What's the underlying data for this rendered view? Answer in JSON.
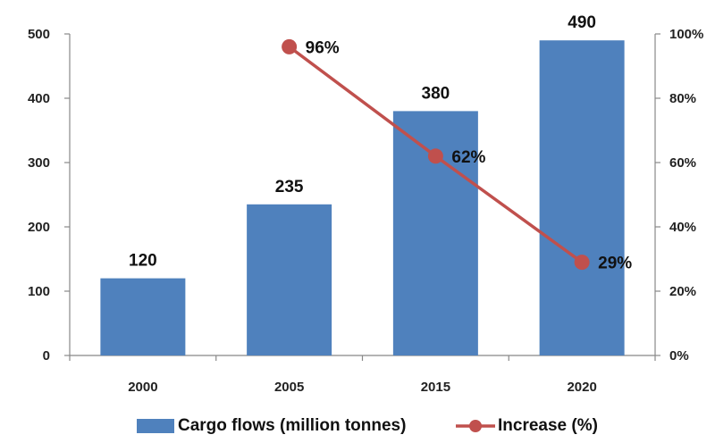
{
  "chart_data": {
    "type": "bar",
    "categories": [
      "2000",
      "2005",
      "2015",
      "2020"
    ],
    "series": [
      {
        "name": "Cargo flows (million tonnes)",
        "type": "bar",
        "axis": "left",
        "values": [
          120,
          235,
          380,
          490
        ],
        "labels": [
          "120",
          "235",
          "380",
          "490"
        ],
        "color": "#4f81bd"
      },
      {
        "name": "Increase (%)",
        "type": "line",
        "axis": "right",
        "values": [
          null,
          96,
          62,
          29
        ],
        "labels": [
          "",
          "96%",
          "62%",
          "29%"
        ],
        "color": "#c0504d"
      }
    ],
    "y_left": {
      "ylim": [
        0,
        500
      ],
      "ticks": [
        "0",
        "100",
        "200",
        "300",
        "400",
        "500"
      ]
    },
    "y_right": {
      "ylim": [
        0,
        100
      ],
      "ticks": [
        "0%",
        "20%",
        "40%",
        "60%",
        "80%",
        "100%"
      ]
    },
    "grid": false,
    "legend": "bottom"
  }
}
